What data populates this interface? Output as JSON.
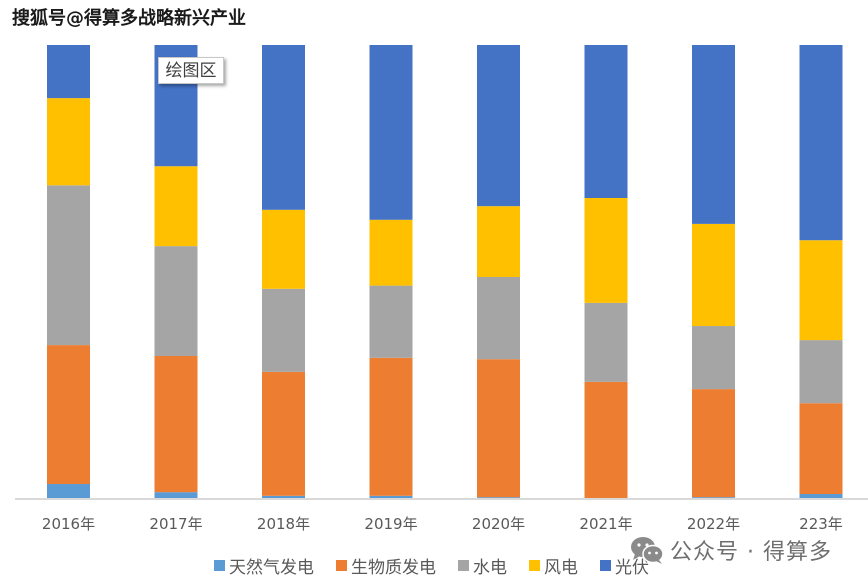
{
  "watermark_top": "搜狐号@得算多战略新兴产业",
  "tooltip_label": "绘图区",
  "watermark_bottom": "公众号 · 得算多",
  "chart_data": {
    "type": "bar",
    "stacked": true,
    "normalized_percent": true,
    "title": "",
    "xlabel": "",
    "ylabel": "",
    "ylim": [
      0,
      100
    ],
    "grid": false,
    "legend_position": "bottom",
    "categories": [
      "2016年",
      "2017年",
      "2018年",
      "2019年",
      "2020年",
      "2021年",
      "2022年",
      "223年"
    ],
    "series": [
      {
        "name": "天然气发电",
        "color": "#5b9bd5",
        "values": [
          3.3,
          1.5,
          0.7,
          0.7,
          0.4,
          0.2,
          0.4,
          1.1
        ]
      },
      {
        "name": "生物质发电",
        "color": "#ed7d31",
        "values": [
          30.6,
          30.0,
          27.3,
          30.4,
          30.4,
          25.6,
          23.8,
          20.0
        ]
      },
      {
        "name": "水电",
        "color": "#a5a5a5",
        "values": [
          35.2,
          24.2,
          18.3,
          15.9,
          18.1,
          17.4,
          13.9,
          13.9
        ]
      },
      {
        "name": "风电",
        "color": "#ffc000",
        "values": [
          19.2,
          17.6,
          17.4,
          14.5,
          15.6,
          23.1,
          22.5,
          22.0
        ]
      },
      {
        "name": "光伏",
        "color": "#4472c4",
        "values": [
          11.7,
          26.7,
          36.3,
          38.5,
          35.5,
          33.7,
          39.4,
          43.0
        ]
      }
    ]
  }
}
